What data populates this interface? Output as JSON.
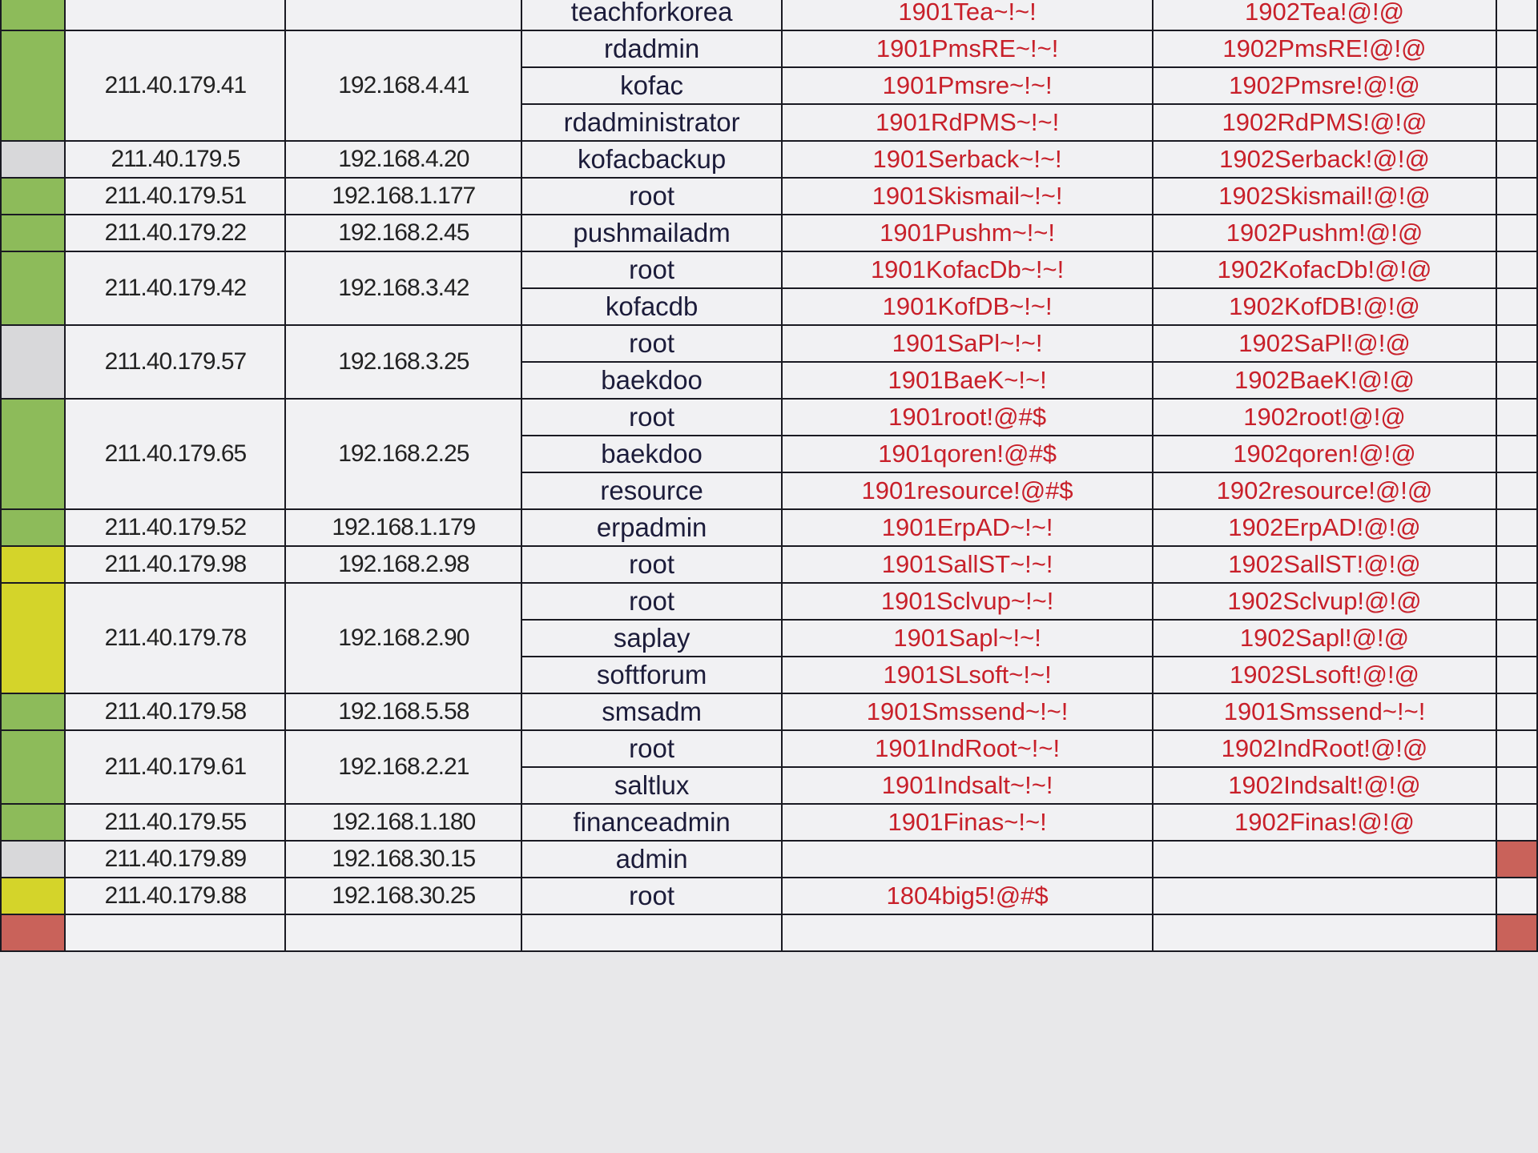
{
  "colors": {
    "green": "#8dbb5a",
    "yellow": "#d4d42a",
    "gray": "#d8d8da",
    "red": "#c9625a",
    "password_text": "#c8202a"
  },
  "groups": [
    {
      "mark": "green",
      "public_ip": "",
      "private_ip": "",
      "accounts": [
        {
          "user": "teachforkorea",
          "pw_1901": "1901Tea~!~!",
          "pw_1902": "1902Tea!@!@"
        }
      ]
    },
    {
      "mark": "green",
      "public_ip": "211.40.179.41",
      "private_ip": "192.168.4.41",
      "accounts": [
        {
          "user": "rdadmin",
          "pw_1901": "1901PmsRE~!~!",
          "pw_1902": "1902PmsRE!@!@"
        },
        {
          "user": "kofac",
          "pw_1901": "1901Pmsre~!~!",
          "pw_1902": "1902Pmsre!@!@"
        },
        {
          "user": "rdadministrator",
          "pw_1901": "1901RdPMS~!~!",
          "pw_1902": "1902RdPMS!@!@"
        }
      ]
    },
    {
      "mark": "gray",
      "public_ip": "211.40.179.5",
      "private_ip": "192.168.4.20",
      "accounts": [
        {
          "user": "kofacbackup",
          "pw_1901": "1901Serback~!~!",
          "pw_1902": "1902Serback!@!@"
        }
      ]
    },
    {
      "mark": "green",
      "public_ip": "211.40.179.51",
      "private_ip": "192.168.1.177",
      "accounts": [
        {
          "user": "root",
          "pw_1901": "1901Skismail~!~!",
          "pw_1902": "1902Skismail!@!@"
        }
      ]
    },
    {
      "mark": "green",
      "public_ip": "211.40.179.22",
      "private_ip": "192.168.2.45",
      "accounts": [
        {
          "user": "pushmailadm",
          "pw_1901": "1901Pushm~!~!",
          "pw_1902": "1902Pushm!@!@"
        }
      ]
    },
    {
      "mark": "green",
      "public_ip": "211.40.179.42",
      "private_ip": "192.168.3.42",
      "accounts": [
        {
          "user": "root",
          "pw_1901": "1901KofacDb~!~!",
          "pw_1902": "1902KofacDb!@!@"
        },
        {
          "user": "kofacdb",
          "pw_1901": "1901KofDB~!~!",
          "pw_1902": "1902KofDB!@!@"
        }
      ]
    },
    {
      "mark": "gray",
      "public_ip": "211.40.179.57",
      "private_ip": "192.168.3.25",
      "accounts": [
        {
          "user": "root",
          "pw_1901": "1901SaPl~!~!",
          "pw_1902": "1902SaPl!@!@"
        },
        {
          "user": "baekdoo",
          "pw_1901": "1901BaeK~!~!",
          "pw_1902": "1902BaeK!@!@"
        }
      ]
    },
    {
      "mark": "green",
      "public_ip": "211.40.179.65",
      "private_ip": "192.168.2.25",
      "accounts": [
        {
          "user": "root",
          "pw_1901": "1901root!@#$",
          "pw_1902": "1902root!@!@"
        },
        {
          "user": "baekdoo",
          "pw_1901": "1901qoren!@#$",
          "pw_1902": "1902qoren!@!@"
        },
        {
          "user": "resource",
          "pw_1901": "1901resource!@#$",
          "pw_1902": "1902resource!@!@"
        }
      ]
    },
    {
      "mark": "green",
      "public_ip": "211.40.179.52",
      "private_ip": "192.168.1.179",
      "accounts": [
        {
          "user": "erpadmin",
          "pw_1901": "1901ErpAD~!~!",
          "pw_1902": "1902ErpAD!@!@"
        }
      ]
    },
    {
      "mark": "yellow",
      "public_ip": "211.40.179.98",
      "private_ip": "192.168.2.98",
      "accounts": [
        {
          "user": "root",
          "pw_1901": "1901SallST~!~!",
          "pw_1902": "1902SallST!@!@"
        }
      ]
    },
    {
      "mark": "yellow",
      "public_ip": "211.40.179.78",
      "private_ip": "192.168.2.90",
      "accounts": [
        {
          "user": "root",
          "pw_1901": "1901Sclvup~!~!",
          "pw_1902": "1902Sclvup!@!@"
        },
        {
          "user": "saplay",
          "pw_1901": "1901Sapl~!~!",
          "pw_1902": "1902Sapl!@!@"
        },
        {
          "user": "softforum",
          "pw_1901": "1901SLsoft~!~!",
          "pw_1902": "1902SLsoft!@!@"
        }
      ]
    },
    {
      "mark": "green",
      "public_ip": "211.40.179.58",
      "private_ip": "192.168.5.58",
      "accounts": [
        {
          "user": "smsadm",
          "pw_1901": "1901Smssend~!~!",
          "pw_1902": "1901Smssend~!~!"
        }
      ]
    },
    {
      "mark": "green",
      "public_ip": "211.40.179.61",
      "private_ip": "192.168.2.21",
      "accounts": [
        {
          "user": "root",
          "pw_1901": "1901IndRoot~!~!",
          "pw_1902": "1902IndRoot!@!@"
        },
        {
          "user": "saltlux",
          "pw_1901": "1901Indsalt~!~!",
          "pw_1902": "1902Indsalt!@!@"
        }
      ]
    },
    {
      "mark": "green",
      "public_ip": "211.40.179.55",
      "private_ip": "192.168.1.180",
      "accounts": [
        {
          "user": "financeadmin",
          "pw_1901": "1901Finas~!~!",
          "pw_1902": "1902Finas!@!@"
        }
      ]
    },
    {
      "mark": "gray",
      "row_color": "red",
      "public_ip": "211.40.179.89",
      "private_ip": "192.168.30.15",
      "accounts": [
        {
          "user": "admin",
          "pw_1901": "",
          "pw_1902": ""
        }
      ],
      "extra": "red"
    },
    {
      "mark": "yellow",
      "public_ip": "211.40.179.88",
      "private_ip": "192.168.30.25",
      "accounts": [
        {
          "user": "root",
          "pw_1901": "1804big5!@#$",
          "pw_1902": ""
        }
      ]
    },
    {
      "mark": "red",
      "row_color": "red",
      "public_ip": "",
      "private_ip": "",
      "accounts": [
        {
          "user": "",
          "pw_1901": "",
          "pw_1902": ""
        }
      ]
    }
  ]
}
